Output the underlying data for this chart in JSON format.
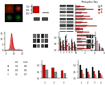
{
  "background": "#ffffff",
  "panel_a": {
    "img_colors": [
      "#331100",
      "#cc2200",
      "#111111",
      "#116611"
    ],
    "label_color": "#ffffff"
  },
  "panel_b": {
    "bars": [
      1.0,
      0.12
    ],
    "bar_colors": [
      "#cc0000",
      "#888888"
    ],
    "ylim": [
      0,
      1.3
    ],
    "yticks": [
      0,
      0.5,
      1.0
    ]
  },
  "panel_b2": {
    "blot_color": "#444444",
    "bg_color": "#cccccc"
  },
  "panel_c": {
    "title": "Phospho-Tau",
    "n_rows": 14,
    "gray_bars": [
      1.8,
      2.2,
      1.5,
      1.2,
      2.8,
      1.6,
      0.9,
      2.5,
      1.4,
      2.0,
      1.7,
      1.3,
      2.1,
      1.0
    ],
    "dark_red_bars": [
      3.2,
      4.0,
      2.8,
      2.2,
      5.0,
      2.9,
      1.6,
      4.5,
      2.5,
      3.6,
      3.1,
      2.4,
      3.8,
      1.8
    ],
    "light_red_bars": [
      1.5,
      1.9,
      1.3,
      1.0,
      2.3,
      1.4,
      0.8,
      2.1,
      1.2,
      1.7,
      1.4,
      1.1,
      1.8,
      0.9
    ],
    "xlim": [
      0,
      6
    ],
    "colors": [
      "#999999",
      "#cc0000",
      "#ff8888"
    ],
    "legend_labels": [
      "S1",
      "S2",
      "S3"
    ]
  },
  "panel_e": {
    "x": [
      0,
      1,
      2,
      3,
      4,
      5,
      6,
      7,
      8,
      9,
      10,
      11,
      12,
      13,
      14,
      15,
      16,
      17,
      18,
      19,
      20
    ],
    "y_red": [
      0.05,
      0.08,
      0.1,
      0.2,
      0.5,
      2.0,
      8.0,
      15.0,
      11.0,
      5.0,
      2.0,
      0.8,
      0.3,
      0.15,
      0.08,
      0.05,
      0.03,
      0.02,
      0.01,
      0.01,
      0.005
    ],
    "y_gray": [
      0.02,
      0.03,
      0.05,
      0.06,
      0.08,
      0.1,
      0.12,
      0.15,
      0.18,
      0.15,
      0.12,
      0.15,
      0.2,
      0.35,
      0.6,
      0.9,
      1.1,
      0.8,
      0.4,
      0.15,
      0.05
    ],
    "color_red": "#cc0000",
    "color_gray": "#aaaaaa",
    "yticks": [
      0,
      5,
      10,
      15
    ],
    "ylim": [
      0,
      16
    ]
  },
  "panel_f": {
    "groups": 6,
    "bar_black": [
      0.9,
      0.7,
      1.1,
      0.5,
      0.8,
      0.6
    ],
    "bar_red": [
      0.6,
      0.45,
      0.75,
      0.3,
      0.55,
      0.4
    ],
    "bar_lightred": [
      0.3,
      0.25,
      0.4,
      0.15,
      0.28,
      0.2
    ],
    "colors": [
      "#111111",
      "#cc0000",
      "#ff8888"
    ],
    "ylim": [
      0,
      1.4
    ],
    "error_black": [
      0.08,
      0.06,
      0.09,
      0.04,
      0.07,
      0.05
    ],
    "error_red": [
      0.05,
      0.04,
      0.06,
      0.03,
      0.05,
      0.04
    ],
    "error_lr": [
      0.03,
      0.02,
      0.03,
      0.02,
      0.03,
      0.02
    ]
  },
  "panel_g_blot": {
    "bg_color": "#bbbbbb",
    "n_lanes": 4,
    "n_bands": 3
  },
  "panel_g_bars": {
    "groups": [
      "",
      "",
      ""
    ],
    "bar_red": [
      1.0,
      0.5,
      0.2
    ],
    "bar_gray": [
      0.7,
      0.3,
      0.15
    ],
    "colors": [
      "#cc0000",
      "#888888"
    ],
    "ylim": [
      0,
      1.4
    ]
  },
  "panel_h_table": {
    "bg": "#f5f5f5"
  },
  "panel_i": {
    "n_groups": 3,
    "bar_red": [
      1.0,
      0.8,
      0.6
    ],
    "bar_gray": [
      0.65,
      0.5,
      0.38
    ],
    "colors": [
      "#cc0000",
      "#888888"
    ],
    "ylim": [
      0,
      1.4
    ]
  },
  "panel_j": {
    "n_groups": 4,
    "bar_black": [
      1.0,
      0.75,
      0.85,
      0.6
    ],
    "bar_red": [
      0.65,
      0.5,
      0.55,
      0.4
    ],
    "bar_lightred": [
      0.35,
      0.28,
      0.3,
      0.22
    ],
    "colors": [
      "#111111",
      "#cc0000",
      "#ff8888"
    ],
    "ylim": [
      0,
      1.4
    ]
  }
}
